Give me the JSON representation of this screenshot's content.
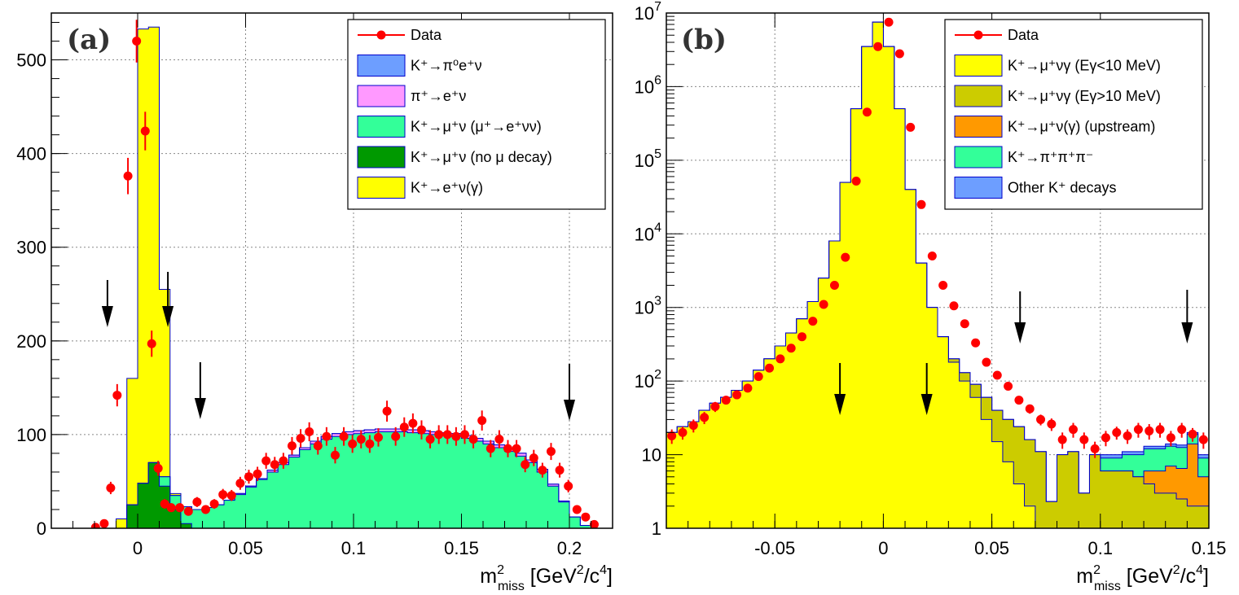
{
  "chart_data": [
    {
      "type": "histogram",
      "panel_label": "(a)",
      "xlabel": "m²miss [GeV²/c⁴]",
      "ylabel": "",
      "xlim": [
        -0.04,
        0.22
      ],
      "ylim": [
        0,
        550
      ],
      "grid": true,
      "x_ticks": [
        0,
        0.05,
        0.1,
        0.15,
        0.2
      ],
      "x_tick_labels": [
        "0",
        "0.05",
        "0.1",
        "0.15",
        "0.2"
      ],
      "y_ticks": [
        0,
        100,
        200,
        300,
        400,
        500
      ],
      "y_tick_labels": [
        "0",
        "100",
        "200",
        "300",
        "400",
        "500"
      ],
      "legend": {
        "position": "top-right",
        "entries": [
          {
            "label": "Data",
            "kind": "marker",
            "color": "#ff0000"
          },
          {
            "label": "K⁺→π⁰e⁺ν",
            "kind": "fill",
            "color": "#6d9eff"
          },
          {
            "label": "π⁺→e⁺ν",
            "kind": "fill",
            "color": "#ff99ff"
          },
          {
            "label": "K⁺→μ⁺ν (μ⁺→e⁺νν)",
            "kind": "fill",
            "color": "#33ff99"
          },
          {
            "label": "K⁺→μ⁺ν (no μ decay)",
            "kind": "fill",
            "color": "#009900"
          },
          {
            "label": "K⁺→e⁺ν(γ)",
            "kind": "fill",
            "color": "#ffff00"
          }
        ]
      },
      "arrows_x": [
        -0.014,
        0.014,
        0.029,
        0.2
      ],
      "bin_edges": [
        -0.04,
        -0.03,
        -0.02,
        -0.015,
        -0.01,
        -0.005,
        0.0,
        0.005,
        0.01,
        0.015,
        0.02,
        0.025,
        0.03,
        0.035,
        0.04,
        0.045,
        0.05,
        0.055,
        0.06,
        0.065,
        0.07,
        0.075,
        0.08,
        0.085,
        0.09,
        0.095,
        0.1,
        0.105,
        0.11,
        0.115,
        0.12,
        0.125,
        0.13,
        0.135,
        0.14,
        0.145,
        0.15,
        0.155,
        0.16,
        0.165,
        0.17,
        0.175,
        0.18,
        0.185,
        0.19,
        0.195,
        0.2,
        0.205,
        0.21,
        0.215
      ],
      "stack": [
        {
          "name": "K⁺→μ⁺ν (no μ decay)",
          "color": "#009900",
          "values": [
            0,
            0,
            0,
            0,
            0,
            25,
            48,
            70,
            45,
            20,
            5,
            0,
            0,
            0,
            0,
            0,
            0,
            0,
            0,
            0,
            0,
            0,
            0,
            0,
            0,
            0,
            0,
            0,
            0,
            0,
            0,
            0,
            0,
            0,
            0,
            0,
            0,
            0,
            0,
            0,
            0,
            0,
            0,
            0,
            0,
            0,
            0,
            0,
            0
          ]
        },
        {
          "name": "K⁺→μ⁺ν (μ⁺→e⁺νν)",
          "color": "#33ff99",
          "values": [
            0,
            0,
            0,
            0,
            0,
            0,
            0,
            0,
            10,
            15,
            18,
            20,
            22,
            25,
            30,
            36,
            44,
            52,
            60,
            68,
            76,
            84,
            90,
            95,
            98,
            100,
            101,
            102,
            103,
            103,
            103,
            102,
            101,
            100,
            99,
            98,
            96,
            93,
            90,
            86,
            82,
            77,
            70,
            60,
            45,
            28,
            12,
            3,
            0
          ]
        },
        {
          "name": "π⁺→e⁺ν",
          "color": "#ff99ff",
          "values": [
            0,
            0,
            0,
            0,
            0,
            0,
            0,
            0,
            0,
            0,
            0,
            0,
            0,
            0,
            0,
            1,
            1,
            1,
            2,
            2,
            2,
            2,
            3,
            3,
            3,
            3,
            3,
            3,
            3,
            3,
            3,
            3,
            3,
            3,
            3,
            3,
            3,
            3,
            3,
            3,
            3,
            3,
            3,
            3,
            2,
            1,
            0,
            0,
            0
          ]
        },
        {
          "name": "K⁺→π⁰e⁺ν",
          "color": "#6d9eff",
          "values": [
            0,
            0,
            0,
            0,
            0,
            0,
            0,
            0,
            0,
            0,
            0,
            0,
            0,
            0,
            0,
            0,
            0,
            0,
            0,
            0,
            0,
            0,
            0,
            0,
            0,
            0,
            0,
            0,
            0,
            0,
            0,
            0,
            0,
            0,
            0,
            0,
            0,
            0,
            0,
            0,
            0,
            0,
            0,
            0,
            0,
            0,
            0,
            0,
            0
          ]
        },
        {
          "name": "K⁺→e⁺ν(γ)",
          "color": "#ffff00",
          "values": [
            0,
            0,
            0,
            0,
            10,
            135,
            485,
            465,
            200,
            2,
            0,
            0,
            0,
            0,
            0,
            0,
            0,
            0,
            0,
            0,
            0,
            0,
            0,
            0,
            0,
            0,
            0,
            0,
            0,
            0,
            0,
            0,
            0,
            0,
            0,
            0,
            0,
            0,
            0,
            0,
            0,
            0,
            0,
            0,
            0,
            0,
            0,
            0,
            0
          ]
        }
      ],
      "data_points": {
        "x": [
          -0.0195,
          -0.0155,
          -0.0125,
          -0.0095,
          -0.0045,
          -0.0005,
          0.0035,
          0.0065,
          0.0095,
          0.0125,
          0.0155,
          0.0195,
          0.0235,
          0.0275,
          0.0315,
          0.0355,
          0.0395,
          0.0435,
          0.0475,
          0.0515,
          0.0555,
          0.0595,
          0.0635,
          0.0675,
          0.0715,
          0.0755,
          0.0795,
          0.0835,
          0.0875,
          0.0915,
          0.0955,
          0.0995,
          0.1035,
          0.1075,
          0.1115,
          0.1155,
          0.1195,
          0.1235,
          0.1275,
          0.1315,
          0.1355,
          0.1395,
          0.1435,
          0.1475,
          0.1515,
          0.1555,
          0.1595,
          0.1635,
          0.1675,
          0.1715,
          0.1755,
          0.1795,
          0.1835,
          0.1875,
          0.1915,
          0.1955,
          0.1995,
          0.2035,
          0.2075,
          0.2115
        ],
        "y": [
          1,
          5,
          43,
          142,
          376,
          520,
          424,
          197,
          64,
          26,
          22,
          22,
          18,
          28,
          20,
          26,
          36,
          35,
          48,
          55,
          58,
          72,
          68,
          72,
          88,
          96,
          103,
          88,
          98,
          78,
          98,
          90,
          95,
          90,
          97,
          125,
          98,
          108,
          112,
          105,
          95,
          100,
          100,
          98,
          100,
          95,
          115,
          85,
          95,
          85,
          85,
          68,
          75,
          62,
          82,
          62,
          45,
          20,
          12,
          4
        ],
        "err": [
          1,
          2.2,
          6.6,
          11.9,
          19.4,
          22.8,
          20.6,
          14.0,
          8.0,
          5.1,
          4.7,
          4.7,
          4.2,
          5.3,
          4.5,
          5.1,
          6.0,
          5.9,
          6.9,
          7.4,
          7.6,
          8.5,
          8.2,
          8.5,
          9.4,
          9.8,
          10.1,
          9.4,
          9.9,
          8.8,
          9.9,
          9.5,
          9.7,
          9.5,
          9.8,
          11.2,
          9.9,
          10.4,
          10.6,
          10.2,
          9.7,
          10.0,
          10.0,
          9.9,
          10.0,
          9.7,
          10.7,
          9.2,
          9.7,
          9.2,
          9.2,
          8.2,
          8.7,
          7.9,
          9.1,
          7.9,
          6.7,
          4.5,
          3.5,
          2.0
        ]
      }
    },
    {
      "type": "histogram",
      "panel_label": "(b)",
      "xlabel": "m²miss [GeV²/c⁴]",
      "ylabel": "",
      "yscale": "log",
      "xlim": [
        -0.1,
        0.15
      ],
      "ylim": [
        1,
        10000000
      ],
      "grid": true,
      "x_ticks": [
        -0.05,
        0,
        0.05,
        0.1,
        0.15
      ],
      "x_tick_labels": [
        "-0.05",
        "0",
        "0.05",
        "0.1",
        "0.15"
      ],
      "y_ticks": [
        1,
        10,
        100,
        1000,
        10000,
        100000,
        1000000,
        10000000
      ],
      "y_tick_labels": [
        "1",
        "10",
        "10²",
        "10³",
        "10⁴",
        "10⁵",
        "10⁶",
        "10⁷"
      ],
      "legend": {
        "position": "top-right",
        "entries": [
          {
            "label": "Data",
            "kind": "marker",
            "color": "#ff0000"
          },
          {
            "label": "K⁺→μ⁺νγ (Eγ<10 MeV)",
            "kind": "fill",
            "color": "#ffff00"
          },
          {
            "label": "K⁺→μ⁺νγ (Eγ>10 MeV)",
            "kind": "fill",
            "color": "#cccc00"
          },
          {
            "label": "K⁺→μ⁺ν(γ) (upstream)",
            "kind": "fill",
            "color": "#ff9900"
          },
          {
            "label": "K⁺→π⁺π⁺π⁻",
            "kind": "fill",
            "color": "#33ff99"
          },
          {
            "label": "Other K⁺ decays",
            "kind": "fill",
            "color": "#6d9eff"
          }
        ]
      },
      "arrows_x": [
        -0.02,
        0.02,
        0.063,
        0.14
      ],
      "bin_edges": [
        -0.1,
        -0.095,
        -0.09,
        -0.085,
        -0.08,
        -0.075,
        -0.07,
        -0.065,
        -0.06,
        -0.055,
        -0.05,
        -0.045,
        -0.04,
        -0.035,
        -0.03,
        -0.025,
        -0.02,
        -0.015,
        -0.01,
        -0.005,
        0.0,
        0.005,
        0.01,
        0.015,
        0.02,
        0.025,
        0.03,
        0.035,
        0.04,
        0.045,
        0.05,
        0.055,
        0.06,
        0.065,
        0.07,
        0.075,
        0.08,
        0.085,
        0.09,
        0.095,
        0.1,
        0.105,
        0.11,
        0.115,
        0.12,
        0.125,
        0.13,
        0.135,
        0.14,
        0.145,
        0.15
      ],
      "stack": [
        {
          "name": "K⁺→μ⁺νγ (Eγ<10 MeV)",
          "color": "#ffff00",
          "values": [
            20,
            24,
            28,
            40,
            50,
            60,
            75,
            100,
            140,
            200,
            300,
            450,
            700,
            1200,
            2500,
            8000,
            50000,
            500000,
            3500000,
            7500000,
            3500000,
            500000,
            40000,
            4000,
            1000,
            400,
            180,
            100,
            60,
            30,
            15,
            8,
            4,
            2,
            1,
            1,
            1,
            1,
            1,
            1,
            1,
            1,
            1,
            1,
            1,
            1,
            1,
            1,
            1,
            1
          ]
        },
        {
          "name": "K⁺→μ⁺νγ (Eγ>10 MeV)",
          "color": "#cccc00",
          "values": [
            0,
            0,
            0,
            0,
            0,
            0,
            0,
            0,
            0,
            0,
            0,
            0,
            0,
            0,
            0,
            0,
            0,
            0,
            0,
            0,
            0,
            0,
            0,
            0,
            0,
            0,
            20,
            30,
            30,
            30,
            25,
            22,
            20,
            14,
            10,
            1.3,
            9,
            10,
            2,
            9,
            5,
            5,
            5,
            4,
            3,
            2,
            2,
            1.5,
            1,
            1
          ]
        },
        {
          "name": "K⁺→μ⁺ν(γ) (upstream)",
          "color": "#ff9900",
          "values": [
            0,
            0,
            0,
            0,
            0,
            0,
            0,
            0,
            0,
            0,
            0,
            0,
            0,
            0,
            0,
            0,
            0,
            0,
            0,
            0,
            0,
            0,
            0,
            0,
            0,
            0,
            0,
            0,
            0,
            0,
            0,
            0,
            0,
            0,
            0,
            0,
            0,
            0,
            0,
            0,
            0,
            0,
            0,
            0,
            2,
            3,
            4,
            4,
            12,
            3
          ]
        },
        {
          "name": "K⁺→π⁺π⁺π⁻",
          "color": "#33ff99",
          "values": [
            0,
            0,
            0,
            0,
            0,
            0,
            0,
            0,
            0,
            0,
            0,
            0,
            0,
            0,
            0,
            0,
            0,
            0,
            0,
            0,
            0,
            0,
            0,
            0,
            0,
            0,
            0,
            0,
            0,
            0,
            0,
            0,
            0,
            0,
            0,
            0,
            0,
            0,
            0,
            0,
            3,
            3,
            4,
            5,
            6,
            6,
            6,
            6,
            5,
            4
          ]
        },
        {
          "name": "Other K⁺ decays",
          "color": "#6d9eff",
          "values": [
            0,
            0,
            0,
            0,
            0,
            0,
            0,
            0,
            0,
            0,
            0,
            0,
            0,
            0,
            0,
            0,
            0,
            0,
            0,
            0,
            0,
            0,
            0,
            0,
            0,
            0,
            0,
            0,
            0,
            0,
            0,
            0,
            0,
            0,
            0,
            0,
            0,
            0,
            0,
            0,
            1,
            1,
            1,
            1,
            1,
            1,
            1,
            1,
            1,
            1
          ]
        }
      ],
      "data_points": {
        "x": [
          -0.0975,
          -0.0925,
          -0.0875,
          -0.0825,
          -0.0775,
          -0.0725,
          -0.0675,
          -0.0625,
          -0.0575,
          -0.0525,
          -0.0475,
          -0.0425,
          -0.0375,
          -0.0325,
          -0.0275,
          -0.0225,
          -0.0175,
          -0.0125,
          -0.0075,
          -0.0025,
          0.0025,
          0.0075,
          0.0125,
          0.0175,
          0.0225,
          0.0275,
          0.0325,
          0.0375,
          0.0425,
          0.0475,
          0.0525,
          0.0575,
          0.0625,
          0.0675,
          0.0725,
          0.0775,
          0.0825,
          0.0875,
          0.0925,
          0.0975,
          0.1025,
          0.1075,
          0.1125,
          0.1175,
          0.1225,
          0.1275,
          0.1325,
          0.1375,
          0.1425,
          0.1475
        ],
        "y": [
          18,
          20,
          25,
          32,
          45,
          55,
          65,
          80,
          115,
          150,
          200,
          280,
          400,
          650,
          1100,
          2000,
          4800,
          52000,
          450000,
          3500000,
          7500000,
          2800000,
          280000,
          25000,
          5000,
          2000,
          1050,
          600,
          330,
          180,
          120,
          85,
          55,
          42,
          30,
          26,
          16,
          22,
          16,
          12,
          17,
          20,
          18,
          22,
          21,
          22,
          17,
          22,
          19,
          16
        ],
        "err": [
          4,
          4,
          5,
          6,
          7,
          7,
          8,
          9,
          11,
          12,
          14,
          17,
          20,
          25,
          33,
          45,
          69,
          228,
          671,
          1871,
          2739,
          1673,
          529,
          158,
          71,
          45,
          32,
          24,
          18,
          13,
          11,
          9,
          7,
          6,
          5,
          5,
          4,
          5,
          4,
          3,
          4,
          4,
          4,
          5,
          5,
          5,
          4,
          5,
          4,
          4
        ]
      }
    }
  ]
}
